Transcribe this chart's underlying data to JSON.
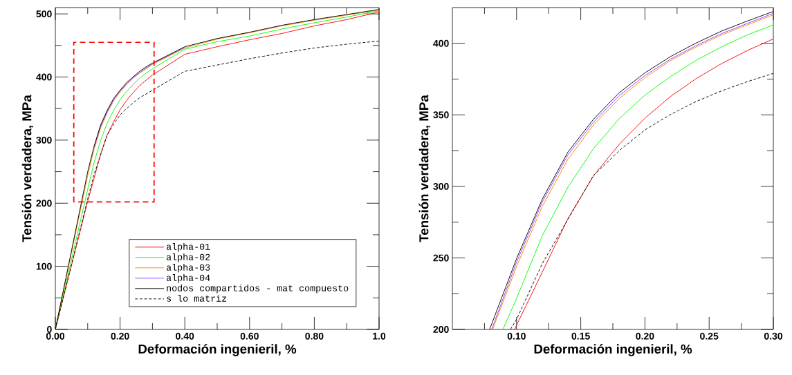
{
  "chart_data": [
    {
      "type": "line",
      "xlabel": "Deformación ingenieril, %",
      "ylabel": "Tensión verdadera, MPa",
      "xlim": [
        0,
        1.0
      ],
      "ylim": [
        0,
        510
      ],
      "xticks": [
        {
          "value": 0,
          "label": "0.00"
        },
        {
          "value": 0.1,
          "label": null
        },
        {
          "value": 0.2,
          "label": "0.20"
        },
        {
          "value": 0.3,
          "label": null
        },
        {
          "value": 0.4,
          "label": "0.40"
        },
        {
          "value": 0.5,
          "label": null
        },
        {
          "value": 0.6,
          "label": "0.60"
        },
        {
          "value": 0.7,
          "label": null
        },
        {
          "value": 0.8,
          "label": "0.80"
        },
        {
          "value": 0.9,
          "label": null
        },
        {
          "value": 1.0,
          "label": "1.0"
        }
      ],
      "yticks": [
        0,
        {
          "value": 50,
          "label": null
        },
        100,
        {
          "value": 150,
          "label": null
        },
        200,
        {
          "value": 250,
          "label": null
        },
        300,
        {
          "value": 350,
          "label": null
        },
        400,
        {
          "value": 450,
          "label": null
        },
        500
      ],
      "legend": "bottom right",
      "series": [
        {
          "name": "alpha-01",
          "color": "#ff0000",
          "line_style": "solid",
          "x": [
            0,
            0.1,
            0.12,
            0.14,
            0.16,
            0.18,
            0.2,
            0.22,
            0.24,
            0.26,
            0.28,
            0.3,
            0.4,
            0.5,
            0.6,
            0.7,
            0.8,
            0.9,
            1.0
          ],
          "values": [
            0,
            203,
            240,
            278,
            308,
            329,
            348,
            363,
            375,
            386,
            395,
            403,
            436,
            448,
            459,
            469,
            481,
            491,
            503
          ]
        },
        {
          "name": "alpha-02",
          "color": "#00ff00",
          "line_style": "solid",
          "x": [
            0,
            0.1,
            0.12,
            0.14,
            0.16,
            0.18,
            0.2,
            0.22,
            0.24,
            0.26,
            0.28,
            0.3,
            0.4,
            0.5,
            0.6,
            0.7,
            0.8,
            0.9,
            1.0
          ],
          "values": [
            0,
            222,
            265,
            300,
            327,
            347,
            364,
            377,
            388,
            398,
            406,
            413,
            444,
            456,
            465,
            476,
            486,
            495,
            505
          ]
        },
        {
          "name": "alpha-03",
          "color": "#ff8000",
          "line_style": "solid",
          "x": [
            0,
            0.1,
            0.12,
            0.14,
            0.16,
            0.18,
            0.2,
            0.22,
            0.24,
            0.26,
            0.28,
            0.3,
            0.4,
            0.5,
            0.6,
            0.7,
            0.8,
            0.9,
            1.0
          ],
          "values": [
            0,
            244,
            286,
            319,
            343,
            362,
            376,
            388,
            398,
            406,
            413,
            420,
            446,
            460,
            470,
            481,
            490,
            498,
            506
          ]
        },
        {
          "name": "alpha-04",
          "color": "#9040ff",
          "line_style": "solid",
          "x": [
            0.12,
            0.14,
            0.16,
            0.18,
            0.2,
            0.22,
            0.24,
            0.26,
            0.28,
            0.3,
            0.4
          ],
          "values": [
            289,
            322,
            345,
            364,
            378,
            389,
            399,
            407,
            414,
            421,
            447
          ]
        },
        {
          "name": "nodos compartidos - mat compuesto",
          "color": "#000000",
          "line_style": "solid",
          "x": [
            0,
            0.1,
            0.12,
            0.14,
            0.16,
            0.18,
            0.2,
            0.22,
            0.24,
            0.26,
            0.28,
            0.3,
            0.4,
            0.5,
            0.6,
            0.7,
            0.8,
            0.9,
            1.0
          ],
          "values": [
            0,
            250,
            291,
            324,
            347,
            366,
            379,
            391,
            400,
            409,
            416,
            422,
            448,
            461,
            471,
            482,
            491,
            499,
            507
          ]
        },
        {
          "name": "s lo matriz",
          "color": "#000000",
          "line_style": "dashed",
          "x": [
            0,
            0.1,
            0.12,
            0.14,
            0.16,
            0.18,
            0.2,
            0.22,
            0.24,
            0.26,
            0.28,
            0.3,
            0.4,
            0.5,
            0.6,
            0.7,
            0.8,
            0.9,
            1.0
          ],
          "values": [
            0,
            207,
            246,
            277,
            308,
            325,
            340,
            350,
            359,
            367,
            373,
            379,
            409,
            419,
            429,
            438,
            446,
            452,
            457
          ]
        }
      ]
    },
    {
      "type": "line",
      "xlabel": "Deformación ingenieril, %",
      "ylabel": "Tensión verdadera, MPa",
      "xlim": [
        0.05,
        0.3
      ],
      "ylim": [
        200,
        425
      ],
      "xticks": [
        {
          "value": 0.075,
          "label": null
        },
        {
          "value": 0.1,
          "label": "0.10"
        },
        {
          "value": 0.125,
          "label": null
        },
        {
          "value": 0.15,
          "label": "0.15"
        },
        {
          "value": 0.175,
          "label": null
        },
        {
          "value": 0.2,
          "label": "0.20"
        },
        {
          "value": 0.225,
          "label": null
        },
        {
          "value": 0.25,
          "label": "0.25"
        },
        {
          "value": 0.275,
          "label": null
        },
        {
          "value": 0.3,
          "label": "0.30"
        }
      ],
      "yticks": [
        200,
        {
          "value": 225,
          "label": null
        },
        250,
        {
          "value": 275,
          "label": null
        },
        300,
        {
          "value": 325,
          "label": null
        },
        350,
        {
          "value": 375,
          "label": null
        },
        400
      ],
      "series": [
        {
          "color": "#ff0000",
          "line_style": "solid",
          "x": [
            0.0985,
            0.1,
            0.12,
            0.14,
            0.16,
            0.18,
            0.2,
            0.22,
            0.24,
            0.26,
            0.28,
            0.3
          ],
          "values": [
            200,
            203,
            240,
            277.5,
            307.5,
            329.4,
            347.7,
            362.9,
            375.4,
            386,
            395.1,
            403.1
          ]
        },
        {
          "color": "#00ff00",
          "line_style": "solid",
          "x": [
            0.0894,
            0.1,
            0.12,
            0.14,
            0.16,
            0.18,
            0.2,
            0.22,
            0.24,
            0.26,
            0.28,
            0.3
          ],
          "values": [
            200,
            221.8,
            265.4,
            299.5,
            326.5,
            347.4,
            363.8,
            376.8,
            388.2,
            397.7,
            406,
            412.9
          ]
        },
        {
          "color": "#ff8000",
          "line_style": "solid",
          "x": [
            0.0813,
            0.1,
            0.12,
            0.14,
            0.16,
            0.18,
            0.2,
            0.22,
            0.24,
            0.26,
            0.28,
            0.3
          ],
          "values": [
            200,
            244,
            286,
            319,
            343,
            361.5,
            376,
            388,
            397.5,
            406,
            413,
            420
          ]
        },
        {
          "color": "#9040ff",
          "line_style": "solid",
          "x": [
            0.0806,
            0.1,
            0.12,
            0.14,
            0.16,
            0.18,
            0.2,
            0.22,
            0.24,
            0.26,
            0.28,
            0.3
          ],
          "values": [
            200,
            247,
            289,
            322,
            345,
            363.5,
            377.5,
            389,
            398.5,
            407,
            414,
            421
          ]
        },
        {
          "color": "#000000",
          "line_style": "solid",
          "x": [
            0.079,
            0.1,
            0.12,
            0.14,
            0.16,
            0.18,
            0.2,
            0.22,
            0.24,
            0.26,
            0.28,
            0.3
          ],
          "values": [
            200,
            249.5,
            291,
            324,
            347,
            365.5,
            379.4,
            390.8,
            400.3,
            408.7,
            415.7,
            422.3
          ]
        },
        {
          "color": "#000000",
          "line_style": "dashed",
          "x": [
            0.0952,
            0.1,
            0.12,
            0.14,
            0.16,
            0.18,
            0.2,
            0.22,
            0.24,
            0.26,
            0.28,
            0.3
          ],
          "values": [
            200,
            207,
            246,
            277,
            307.7,
            325,
            339.5,
            350.3,
            359.4,
            366.9,
            373.3,
            379
          ]
        }
      ]
    }
  ]
}
